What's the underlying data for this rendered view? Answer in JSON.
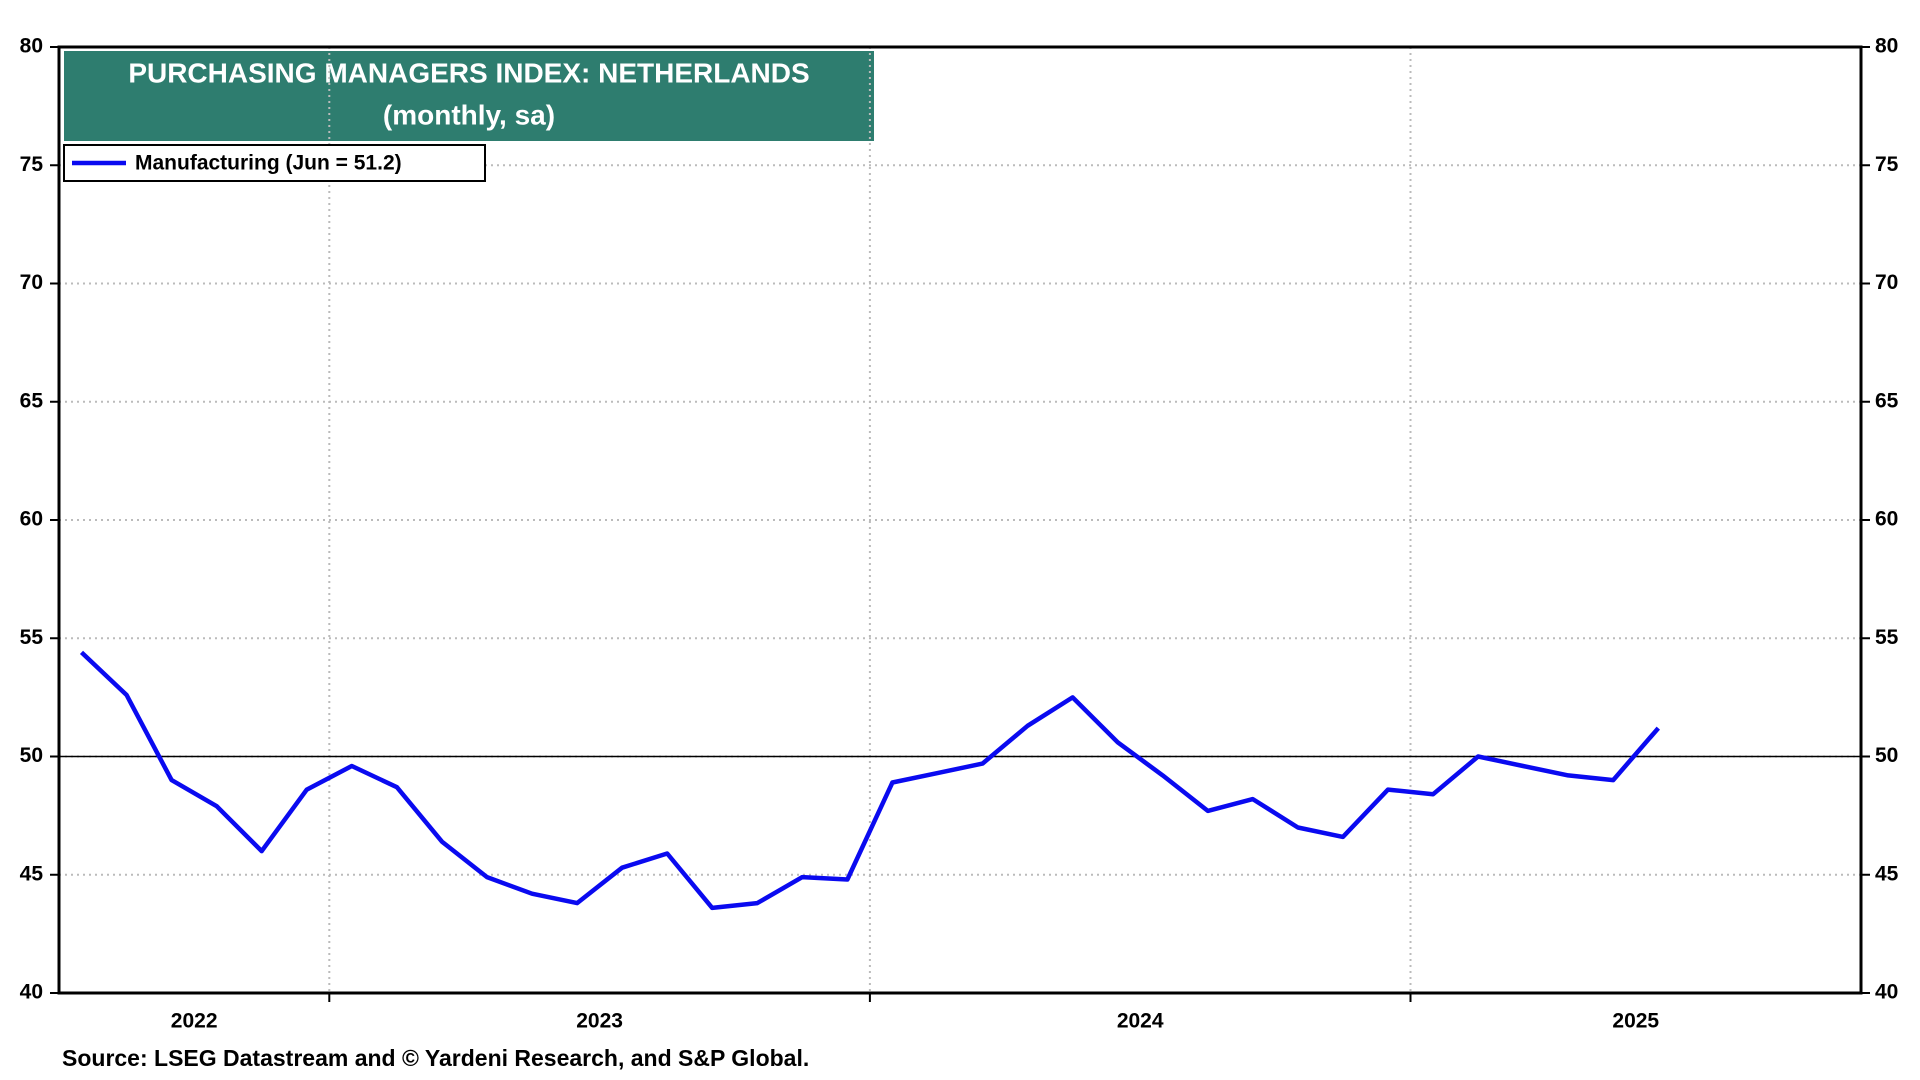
{
  "chart_data": {
    "type": "line",
    "title": "PURCHASING MANAGERS INDEX: NETHERLANDS",
    "subtitle": "(monthly, sa)",
    "source": "Source: LSEG Datastream and © Yardeni Research, and S&P Global.",
    "x": [
      "2022-07",
      "2022-08",
      "2022-09",
      "2022-10",
      "2022-11",
      "2022-12",
      "2023-01",
      "2023-02",
      "2023-03",
      "2023-04",
      "2023-05",
      "2023-06",
      "2023-07",
      "2023-08",
      "2023-09",
      "2023-10",
      "2023-11",
      "2023-12",
      "2024-01",
      "2024-02",
      "2024-03",
      "2024-04",
      "2024-05",
      "2024-06",
      "2024-07",
      "2024-08",
      "2024-09",
      "2024-10",
      "2024-11",
      "2024-12",
      "2025-01",
      "2025-02",
      "2025-03",
      "2025-04",
      "2025-05",
      "2025-06"
    ],
    "series": [
      {
        "name": "Manufacturing (Jun = 51.2)",
        "color": "#0a0af0",
        "values": [
          54.4,
          52.6,
          49.0,
          47.9,
          46.0,
          48.6,
          49.6,
          48.7,
          46.4,
          44.9,
          44.2,
          43.8,
          45.3,
          45.9,
          43.6,
          43.8,
          44.9,
          44.8,
          48.9,
          49.3,
          49.7,
          51.3,
          52.5,
          50.6,
          49.2,
          47.7,
          48.2,
          47.0,
          46.6,
          48.6,
          48.4,
          50.0,
          49.6,
          49.2,
          49.0,
          51.2
        ]
      }
    ],
    "xlim": [
      "2022-07",
      "2025-11"
    ],
    "xticks": [
      "2022",
      "2023",
      "2024",
      "2025"
    ],
    "ylim": [
      40,
      80
    ],
    "yticks": [
      40,
      45,
      50,
      55,
      60,
      65,
      70,
      75,
      80
    ],
    "y2lim": [
      40,
      80
    ],
    "y2ticks": [
      40,
      45,
      50,
      55,
      60,
      65,
      70,
      75,
      80
    ],
    "reference_line": 50,
    "grid": true,
    "legend": "upper left",
    "title_color": "#2e7d6f"
  }
}
